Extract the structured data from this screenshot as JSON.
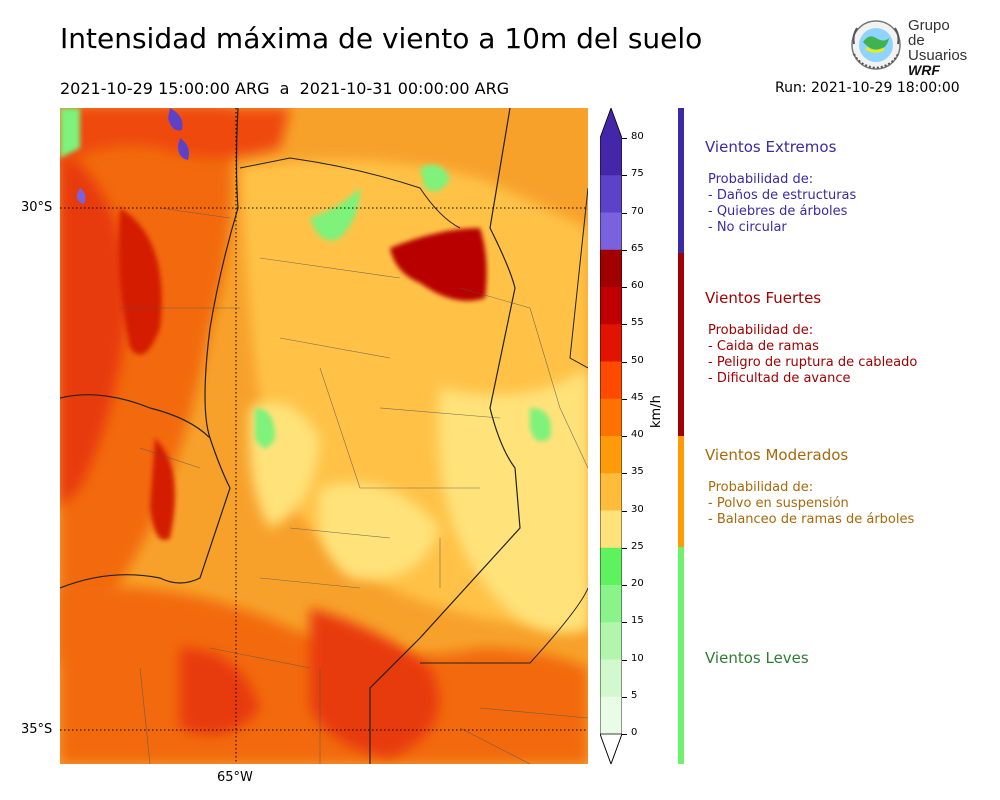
{
  "header": {
    "title": "Intensidad máxima de viento a 10m del suelo",
    "period": "2021-10-29 15:00:00 ARG  a  2021-10-31 00:00:00 ARG",
    "run": "Run: 2021-10-29 18:00:00"
  },
  "logo": {
    "line1": "Grupo de",
    "line2": "Usuarios",
    "line3": "WRF"
  },
  "map": {
    "lat_labels": [
      "30°S",
      "35°S"
    ],
    "lon_labels": [
      "65°W"
    ]
  },
  "colorbar": {
    "unit": "km/h",
    "ticks": [
      "80",
      "75",
      "70",
      "65",
      "60",
      "55",
      "50",
      "45",
      "40",
      "35",
      "30",
      "25",
      "20",
      "15",
      "10",
      "5",
      "0"
    ],
    "colors": [
      "#4426a8",
      "#5c41c9",
      "#7a62de",
      "#a10000",
      "#c00000",
      "#e01400",
      "#ff4a00",
      "#ff7200",
      "#ff9a0a",
      "#ffbb3a",
      "#ffe37a",
      "#5ef25e",
      "#8af38a",
      "#b2f6ae",
      "#d1f9cd",
      "#e9fce6"
    ]
  },
  "categories": [
    {
      "title": "Vientos Extremos",
      "color": "#3a2aa5",
      "heading": "Probabilidad de:",
      "lines": [
        "- Daños de estructuras",
        "- Quiebres de árboles",
        "- No circular"
      ]
    },
    {
      "title": "Vientos Fuertes",
      "color": "#a10000",
      "heading": "Probabilidad de:",
      "lines": [
        "- Caida de ramas",
        "- Peligro de ruptura de cableado",
        "- Dificultad de avance"
      ]
    },
    {
      "title": "Vientos Moderados",
      "color": "#a8690a",
      "heading": "Probabilidad de:",
      "lines": [
        "- Polvo en suspensión",
        "- Balanceo de ramas de árboles"
      ]
    },
    {
      "title": "Vientos Leves",
      "color": "#2e7d32",
      "heading": "",
      "lines": []
    }
  ],
  "category_bar_colors": [
    "#3a2aa5",
    "#a10000",
    "#ff9a00",
    "#6ef26e"
  ]
}
